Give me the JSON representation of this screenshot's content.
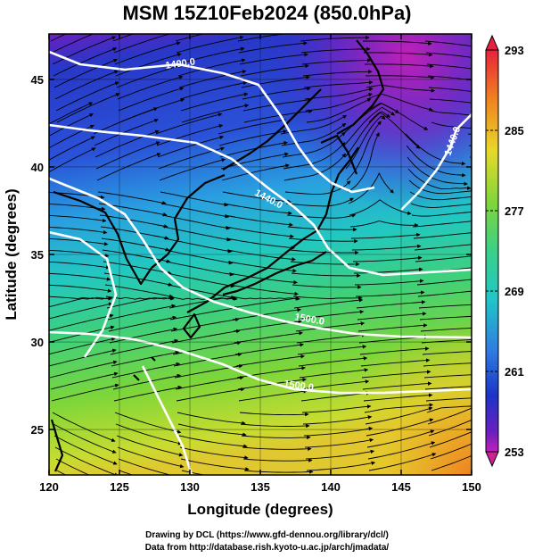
{
  "title": "MSM 15Z10Feb2024 (850.0hPa)",
  "x_axis": {
    "label": "Longitude (degrees)",
    "ticks": [
      "120",
      "125",
      "130",
      "135",
      "140",
      "145",
      "150"
    ],
    "tick_values": [
      120,
      125,
      130,
      135,
      140,
      145,
      150
    ],
    "range": [
      120,
      150
    ]
  },
  "y_axis": {
    "label": "Latitude  (degrees)",
    "ticks": [
      "25",
      "30",
      "35",
      "40",
      "45"
    ],
    "tick_values": [
      25,
      30,
      35,
      40,
      45
    ],
    "range": [
      22.4,
      47.6
    ]
  },
  "colorbar": {
    "labels": [
      "293",
      "285",
      "277",
      "269",
      "261",
      "253"
    ],
    "values": [
      293,
      285,
      277,
      269,
      261,
      253
    ],
    "colors": [
      "#e8213c",
      "#f08020",
      "#e8d82a",
      "#7fd63a",
      "#21c6c8",
      "#2f7be0",
      "#1c34c8",
      "#6a1fc0",
      "#c020b8"
    ]
  },
  "contours": [
    {
      "label": "1400.0"
    },
    {
      "label": "1440.0"
    },
    {
      "label": "1440.0"
    },
    {
      "label": "1500.0"
    },
    {
      "label": "1500.0"
    }
  ],
  "credits": {
    "line1": "Drawing by DCL (https://www.gfd-dennou.org/library/dcl/)",
    "line2": "Data from http://database.rish.kyoto-u.ac.jp/arch/jmadata/"
  }
}
